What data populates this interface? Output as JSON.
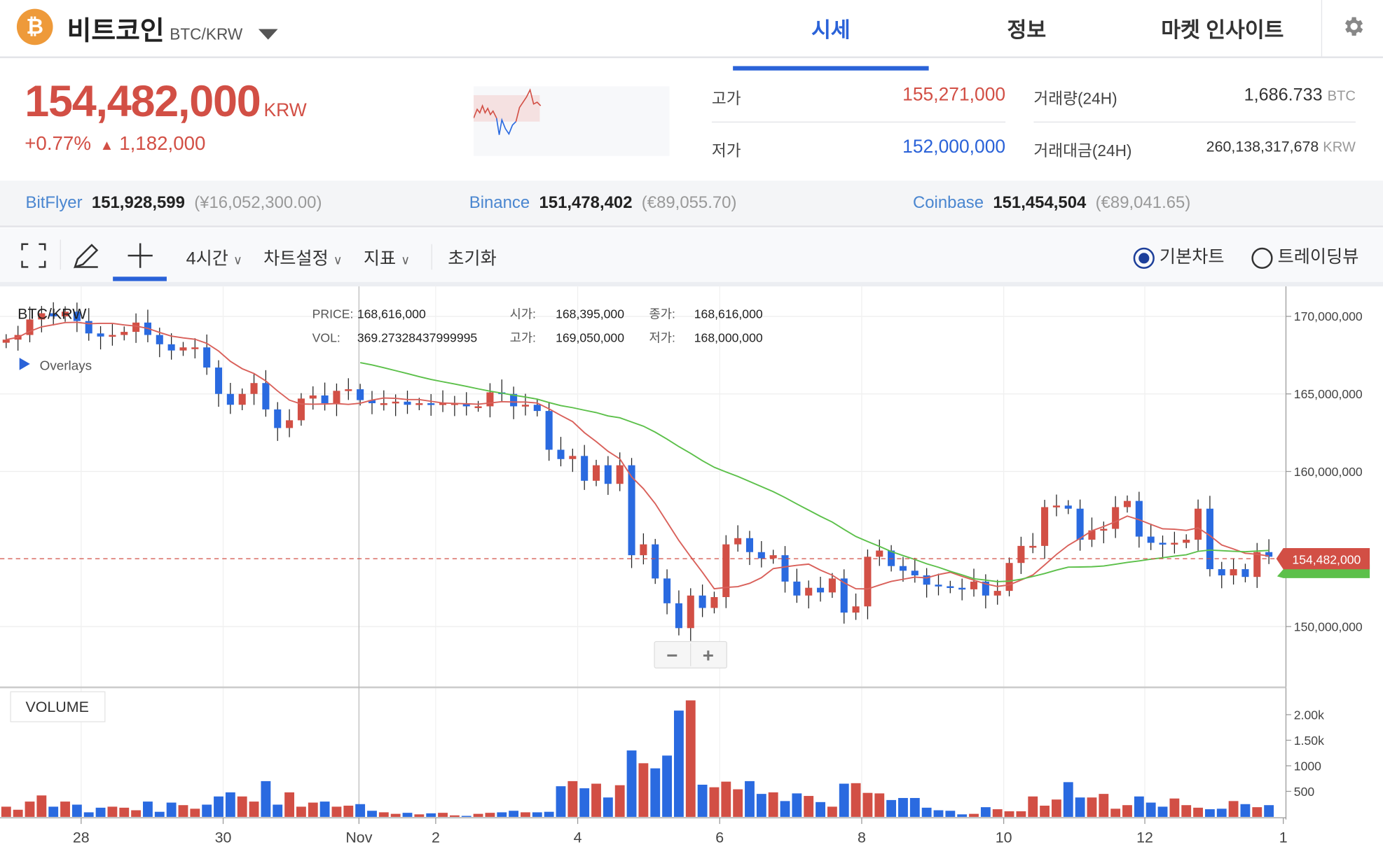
{
  "header": {
    "coin_name": "비트코인",
    "pair": "BTC/KRW",
    "logo_symbol": "₿",
    "tabs": [
      {
        "label": "시세",
        "active": true
      },
      {
        "label": "정보"
      },
      {
        "label": "마켓 인사이트"
      }
    ]
  },
  "price": {
    "current": "154,482,000",
    "unit": "KRW",
    "change_pct": "+0.77%",
    "change_abs": "1,182,000",
    "high_label": "고가",
    "high": "155,271,000",
    "low_label": "저가",
    "low": "152,000,000",
    "volume_label": "거래량(24H)",
    "volume": "1,686.733",
    "volume_unit": "BTC",
    "turnover_label": "거래대금(24H)",
    "turnover": "260,138,317,678",
    "turnover_unit": "KRW"
  },
  "exchanges": [
    {
      "name": "BitFlyer",
      "price": "151,928,599",
      "local": "(¥16,052,300.00)"
    },
    {
      "name": "Binance",
      "price": "151,478,402",
      "local": "(€89,055.70)"
    },
    {
      "name": "Coinbase",
      "price": "151,454,504",
      "local": "(€89,041.65)"
    }
  ],
  "toolbar": {
    "interval": "4시간",
    "chart_settings": "차트설정",
    "indicators": "지표",
    "reset": "초기화",
    "radio_basic": "기본차트",
    "radio_trading": "트레이딩뷰",
    "selected": "기본차트"
  },
  "chart": {
    "symbol": "BTC/KRW",
    "overlays": "Overlays",
    "volume_label": "VOLUME",
    "tooltip": {
      "price_label": "PRICE:",
      "price": "168,616,000",
      "vol_label": "VOL:",
      "vol": "369.27328437999995",
      "open_label": "시가:",
      "open": "168,395,000",
      "high_label": "고가:",
      "high": "169,050,000",
      "close_label": "종가:",
      "close": "168,616,000",
      "low_label": "저가:",
      "low": "168,000,000"
    },
    "y_ticks": [
      "170,000,000",
      "165,000,000",
      "160,000,000",
      "150,000,000"
    ],
    "vol_ticks": [
      "2.00k",
      "1.50k",
      "1000",
      "500"
    ],
    "x_ticks": [
      "28",
      "30",
      "Nov",
      "2",
      "4",
      "6",
      "8",
      "10",
      "12",
      "1"
    ],
    "current_price_label": "154,482,000",
    "colors": {
      "up": "#d24f45",
      "down": "#2a6ae0",
      "ma_short": "#d9605a",
      "ma_long": "#5cc04a",
      "accent": "#2a62d8"
    },
    "zoom_out": "−",
    "zoom_in": "+"
  },
  "chart_data": {
    "type": "candlestick",
    "unit": "KRW (millions)",
    "closes": [
      168.5,
      168.8,
      169.8,
      170.2,
      170.0,
      170.3,
      169.7,
      168.9,
      168.7,
      168.8,
      169.0,
      169.6,
      168.8,
      168.2,
      167.8,
      168.0,
      168.0,
      166.7,
      165.0,
      164.3,
      165.0,
      165.7,
      164.0,
      162.8,
      163.3,
      164.7,
      164.9,
      164.4,
      165.2,
      165.3,
      164.6,
      164.4,
      164.4,
      164.5,
      164.3,
      164.4,
      164.3,
      164.4,
      164.4,
      164.2,
      164.2,
      165.1,
      165.0,
      164.2,
      164.3,
      163.9,
      161.4,
      160.8,
      161.0,
      159.4,
      160.4,
      159.2,
      160.4,
      154.6,
      155.3,
      153.1,
      151.5,
      149.9,
      152.0,
      151.2,
      151.9,
      155.3,
      155.7,
      154.8,
      154.4,
      154.6,
      152.9,
      152.0,
      152.5,
      152.2,
      153.1,
      150.9,
      151.3,
      154.5,
      154.9,
      153.9,
      153.6,
      153.3,
      152.7,
      152.6,
      152.5,
      152.4,
      152.9,
      152.0,
      152.3,
      154.1,
      155.2,
      155.2,
      157.7,
      157.8,
      157.6,
      155.6,
      156.2,
      156.3,
      157.7,
      158.1,
      155.8,
      155.4,
      155.3,
      155.4,
      155.6,
      157.6,
      153.7,
      153.3,
      153.7,
      153.2,
      154.8,
      154.5
    ],
    "volumes": [
      200,
      140,
      300,
      420,
      200,
      300,
      240,
      90,
      180,
      200,
      180,
      130,
      300,
      100,
      280,
      230,
      160,
      240,
      400,
      480,
      400,
      300,
      700,
      240,
      480,
      200,
      280,
      300,
      200,
      220,
      250,
      120,
      90,
      60,
      80,
      50,
      70,
      80,
      30,
      20,
      60,
      80,
      90,
      120,
      90,
      90,
      100,
      600,
      700,
      560,
      650,
      380,
      620,
      1300,
      1050,
      950,
      1200,
      2080,
      2280,
      630,
      580,
      690,
      540,
      700,
      450,
      480,
      310,
      460,
      410,
      290,
      200,
      650,
      660,
      470,
      460,
      330,
      370,
      370,
      180,
      130,
      120,
      50,
      60,
      190,
      150,
      110,
      110,
      400,
      220,
      340,
      680,
      380,
      380,
      450,
      160,
      230,
      400,
      280,
      200,
      360,
      230,
      180,
      150,
      160,
      310,
      250,
      190,
      230
    ],
    "ylim": [
      147,
      172
    ],
    "vol_ylim": [
      0,
      2500
    ],
    "interval": "4h"
  }
}
